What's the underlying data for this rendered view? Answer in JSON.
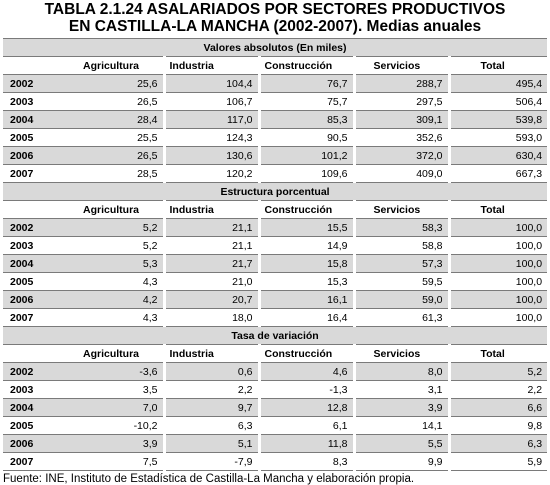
{
  "title": {
    "line1": "TABLA 2.1.24 ASALARIADOS  POR SECTORES PRODUCTIVOS",
    "line2": "EN CASTILLA-LA MANCHA (2002-2007). Medias anuales"
  },
  "columns": [
    "Agricultura",
    "Industria",
    "Construcción",
    "Servicios",
    "Total"
  ],
  "sections": [
    {
      "heading": "Valores absolutos (En miles)",
      "rows": [
        {
          "year": "2002",
          "values": [
            "25,6",
            "104,4",
            "76,7",
            "288,7",
            "495,4"
          ]
        },
        {
          "year": "2003",
          "values": [
            "26,5",
            "106,7",
            "75,7",
            "297,5",
            "506,4"
          ]
        },
        {
          "year": "2004",
          "values": [
            "28,4",
            "117,0",
            "85,3",
            "309,1",
            "539,8"
          ]
        },
        {
          "year": "2005",
          "values": [
            "25,5",
            "124,3",
            "90,5",
            "352,6",
            "593,0"
          ]
        },
        {
          "year": "2006",
          "values": [
            "26,5",
            "130,6",
            "101,2",
            "372,0",
            "630,4"
          ]
        },
        {
          "year": "2007",
          "values": [
            "28,5",
            "120,2",
            "109,6",
            "409,0",
            "667,3"
          ]
        }
      ]
    },
    {
      "heading": "Estructura porcentual",
      "rows": [
        {
          "year": "2002",
          "values": [
            "5,2",
            "21,1",
            "15,5",
            "58,3",
            "100,0"
          ]
        },
        {
          "year": "2003",
          "values": [
            "5,2",
            "21,1",
            "14,9",
            "58,8",
            "100,0"
          ]
        },
        {
          "year": "2004",
          "values": [
            "5,3",
            "21,7",
            "15,8",
            "57,3",
            "100,0"
          ]
        },
        {
          "year": "2005",
          "values": [
            "4,3",
            "21,0",
            "15,3",
            "59,5",
            "100,0"
          ]
        },
        {
          "year": "2006",
          "values": [
            "4,2",
            "20,7",
            "16,1",
            "59,0",
            "100,0"
          ]
        },
        {
          "year": "2007",
          "values": [
            "4,3",
            "18,0",
            "16,4",
            "61,3",
            "100,0"
          ]
        }
      ]
    },
    {
      "heading": "Tasa de variación",
      "rows": [
        {
          "year": "2002",
          "values": [
            "-3,6",
            "0,6",
            "4,6",
            "8,0",
            "5,2"
          ]
        },
        {
          "year": "2003",
          "values": [
            "3,5",
            "2,2",
            "-1,3",
            "3,1",
            "2,2"
          ]
        },
        {
          "year": "2004",
          "values": [
            "7,0",
            "9,7",
            "12,8",
            "3,9",
            "6,6"
          ]
        },
        {
          "year": "2005",
          "values": [
            "-10,2",
            "6,3",
            "6,1",
            "14,1",
            "9,8"
          ]
        },
        {
          "year": "2006",
          "values": [
            "3,9",
            "5,1",
            "11,8",
            "5,5",
            "6,3"
          ]
        },
        {
          "year": "2007",
          "values": [
            "7,5",
            "-7,9",
            "8,3",
            "9,9",
            "5,9"
          ]
        }
      ]
    }
  ],
  "source": "Fuente: INE, Instituto de Estadística de Castilla-La Mancha y elaboración propia."
}
